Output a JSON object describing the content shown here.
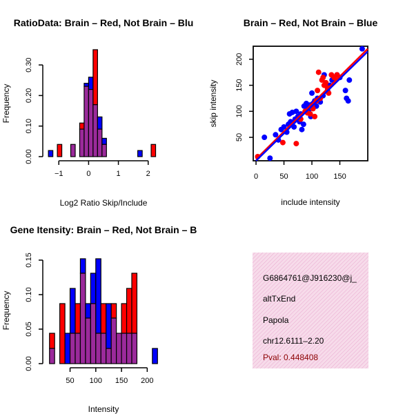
{
  "colors": {
    "red": "#ff0000",
    "blue": "#0000ff",
    "purple": "#9b2a9b",
    "axis": "#000000",
    "info_bg": "#f7dbea",
    "pval": "#8b0000",
    "fit_red": "#ff0000",
    "fit_blue": "#0000ff"
  },
  "chart_data": [
    {
      "type": "bar",
      "title": "RatioData: Brain – Red, Not Brain – Blu",
      "xlabel": "Log2 Ratio Skip/Include",
      "ylabel": "Frequency",
      "xlim": [
        -1.4,
        2.4
      ],
      "ylim": [
        0,
        0.35
      ],
      "xticks": [
        -1,
        0,
        1,
        2
      ],
      "xtick_labels": [
        "−1",
        "0",
        "1",
        "2"
      ],
      "yticks": [
        0.0,
        0.1,
        0.2,
        0.3
      ],
      "ytick_labels": [
        "0.00",
        "0.10",
        "0.20",
        "0.30"
      ],
      "bin_width": 0.15,
      "series": [
        {
          "name": "Brain",
          "color": "red",
          "bins": [
            [
              -1.05,
              0.04
            ],
            [
              -0.6,
              0.04
            ],
            [
              -0.3,
              0.11
            ],
            [
              -0.15,
              0.23
            ],
            [
              0.0,
              0.22
            ],
            [
              0.15,
              0.35
            ],
            [
              0.3,
              0.09
            ],
            [
              0.45,
              0.04
            ],
            [
              2.1,
              0.04
            ]
          ]
        },
        {
          "name": "Not Brain",
          "color": "blue",
          "bins": [
            [
              -1.35,
              0.02
            ],
            [
              -0.6,
              0.04
            ],
            [
              -0.3,
              0.09
            ],
            [
              -0.15,
              0.24
            ],
            [
              0.0,
              0.26
            ],
            [
              0.15,
              0.17
            ],
            [
              0.3,
              0.13
            ],
            [
              0.45,
              0.06
            ],
            [
              1.65,
              0.02
            ]
          ]
        }
      ]
    },
    {
      "type": "scatter",
      "title": "Brain – Red, Not Brain – Blue",
      "xlabel": "include intensity",
      "ylabel": "skip intensity",
      "xlim": [
        -5,
        200
      ],
      "ylim": [
        5,
        225
      ],
      "xticks": [
        0,
        50,
        100,
        150
      ],
      "yticks": [
        50,
        100,
        150,
        200
      ],
      "series": [
        {
          "name": "Brain",
          "color": "red",
          "points": [
            [
              3,
              13
            ],
            [
              48,
              40
            ],
            [
              72,
              38
            ],
            [
              80,
              85
            ],
            [
              88,
              100
            ],
            [
              92,
              97
            ],
            [
              97,
              95
            ],
            [
              100,
              110
            ],
            [
              102,
              105
            ],
            [
              105,
              90
            ],
            [
              108,
              120
            ],
            [
              110,
              140
            ],
            [
              112,
              175
            ],
            [
              115,
              125
            ],
            [
              118,
              160
            ],
            [
              120,
              165
            ],
            [
              122,
              150
            ],
            [
              125,
              155
            ],
            [
              128,
              145
            ],
            [
              130,
              135
            ],
            [
              135,
              170
            ],
            [
              140,
              165
            ],
            [
              145,
              170
            ]
          ],
          "fit": [
            [
              0,
              8
            ],
            [
              200,
              220
            ]
          ]
        },
        {
          "name": "Not Brain",
          "color": "blue",
          "points": [
            [
              15,
              50
            ],
            [
              25,
              10
            ],
            [
              35,
              55
            ],
            [
              40,
              45
            ],
            [
              45,
              65
            ],
            [
              50,
              70
            ],
            [
              55,
              60
            ],
            [
              58,
              75
            ],
            [
              60,
              95
            ],
            [
              62,
              80
            ],
            [
              65,
              98
            ],
            [
              68,
              70
            ],
            [
              70,
              85
            ],
            [
              72,
              100
            ],
            [
              75,
              90
            ],
            [
              78,
              80
            ],
            [
              80,
              95
            ],
            [
              82,
              65
            ],
            [
              85,
              75
            ],
            [
              86,
              110
            ],
            [
              88,
              100
            ],
            [
              90,
              115
            ],
            [
              92,
              105
            ],
            [
              94,
              100
            ],
            [
              96,
              112
            ],
            [
              98,
              90
            ],
            [
              100,
              135
            ],
            [
              102,
              115
            ],
            [
              105,
              120
            ],
            [
              108,
              110
            ],
            [
              110,
              125
            ],
            [
              115,
              118
            ],
            [
              120,
              130
            ],
            [
              122,
              170
            ],
            [
              128,
              140
            ],
            [
              132,
              150
            ],
            [
              136,
              160
            ],
            [
              145,
              170
            ],
            [
              150,
              165
            ],
            [
              160,
              140
            ],
            [
              162,
              125
            ],
            [
              165,
              120
            ],
            [
              167,
              160
            ],
            [
              190,
              220
            ]
          ],
          "fit": [
            [
              0,
              5
            ],
            [
              200,
              215
            ]
          ]
        }
      ]
    },
    {
      "type": "bar",
      "title": "Gene Itensity: Brain – Red, Not Brain – B",
      "xlabel": "Intensity",
      "ylabel": "Frequency",
      "xlim": [
        5,
        225
      ],
      "ylim": [
        0,
        0.155
      ],
      "xticks": [
        50,
        100,
        150,
        200
      ],
      "yticks": [
        0.0,
        0.05,
        0.1,
        0.15
      ],
      "ytick_labels": [
        "0.00",
        "0.05",
        "0.10",
        "0.15"
      ],
      "bin_width": 10,
      "series": [
        {
          "name": "Brain",
          "color": "red",
          "bins": [
            [
              10,
              0.044
            ],
            [
              30,
              0.087
            ],
            [
              50,
              0.044
            ],
            [
              60,
              0.087
            ],
            [
              70,
              0.131
            ],
            [
              80,
              0.066
            ],
            [
              90,
              0.087
            ],
            [
              100,
              0.044
            ],
            [
              110,
              0.087
            ],
            [
              120,
              0.022
            ],
            [
              130,
              0.087
            ],
            [
              140,
              0.044
            ],
            [
              150,
              0.087
            ],
            [
              160,
              0.109
            ],
            [
              170,
              0.131
            ]
          ]
        },
        {
          "name": "Not Brain",
          "color": "blue",
          "bins": [
            [
              10,
              0.022
            ],
            [
              40,
              0.044
            ],
            [
              50,
              0.109
            ],
            [
              60,
              0.044
            ],
            [
              70,
              0.152
            ],
            [
              80,
              0.087
            ],
            [
              90,
              0.131
            ],
            [
              100,
              0.152
            ],
            [
              110,
              0.044
            ],
            [
              120,
              0.087
            ],
            [
              130,
              0.066
            ],
            [
              140,
              0.044
            ],
            [
              150,
              0.044
            ],
            [
              160,
              0.044
            ],
            [
              170,
              0.044
            ],
            [
              210,
              0.022
            ]
          ]
        }
      ]
    }
  ],
  "info_panel": {
    "id": "G6864761@J916230@j_",
    "event_type": "altTxEnd",
    "gene": "Papola",
    "location": "chr12.6111–2.20",
    "pval": "Pval: 0.448408"
  }
}
